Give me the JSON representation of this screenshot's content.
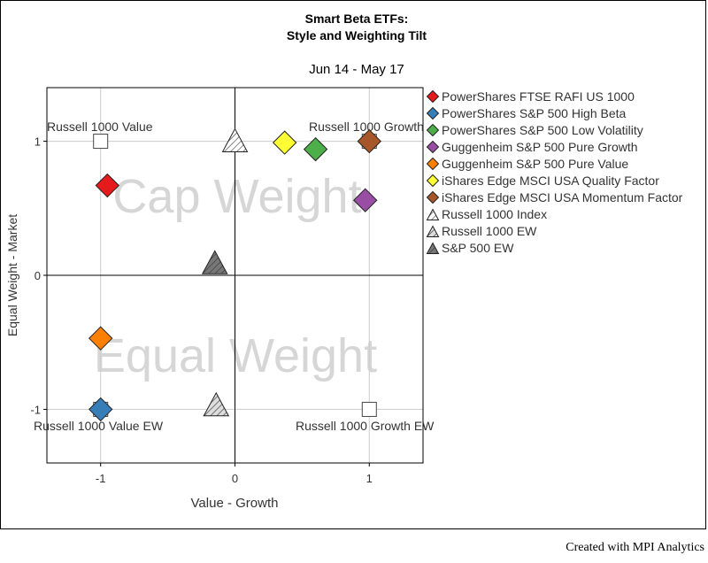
{
  "chart_data": {
    "type": "scatter",
    "title": "Smart Beta ETFs:",
    "subtitle": "Style and Weighting Tilt",
    "period": "Jun 14 - May 17",
    "xlabel": "Value - Growth",
    "ylabel": "Equal Weight  -  Market",
    "xlim": [
      -1.4,
      1.4
    ],
    "ylim": [
      -1.4,
      1.4
    ],
    "xticks": [
      "-1",
      "0",
      "1"
    ],
    "yticks": [
      "1",
      "0",
      "-1"
    ],
    "grid": true,
    "legend_position": "right",
    "region_labels": {
      "top": "Cap Weight",
      "bottom": "Equal Weight"
    },
    "corner_labels": {
      "top_left": "Russell 1000 Value",
      "top_right": "Russell 1000 Growth",
      "bottom_left": "Russell 1000 Value EW",
      "bottom_right": "Russell 1000 Growth EW"
    },
    "series": [
      {
        "name": "PowerShares FTSE RAFI US 1000",
        "marker": "diamond",
        "color": "#e41a1c",
        "x": -0.95,
        "y": 0.67
      },
      {
        "name": "PowerShares S&P 500 High Beta",
        "marker": "diamond",
        "color": "#377eb8",
        "x": -1.0,
        "y": -1.0
      },
      {
        "name": "PowerShares S&P 500 Low Volatility",
        "marker": "diamond",
        "color": "#4daf4a",
        "x": 0.6,
        "y": 0.94
      },
      {
        "name": "Guggenheim S&P 500 Pure Growth",
        "marker": "diamond",
        "color": "#984ea3",
        "x": 0.97,
        "y": 0.56
      },
      {
        "name": "Guggenheim S&P 500 Pure Value",
        "marker": "diamond",
        "color": "#ff7f00",
        "x": -1.0,
        "y": -0.47
      },
      {
        "name": "iShares Edge MSCI USA Quality Factor",
        "marker": "diamond",
        "color": "#ffff33",
        "x": 0.37,
        "y": 0.99
      },
      {
        "name": "iShares Edge MSCI USA Momentum Factor",
        "marker": "diamond",
        "color": "#a65628",
        "x": 1.0,
        "y": 1.0
      },
      {
        "name": "Russell 1000 Index",
        "marker": "triangle-hatched",
        "color": "#ffffff",
        "x": 0.0,
        "y": 1.0
      },
      {
        "name": "Russell 1000 EW",
        "marker": "triangle-hatched",
        "color": "#dddddd",
        "x": -0.14,
        "y": -0.97
      },
      {
        "name": "S&P 500 EW",
        "marker": "triangle-hatched",
        "color": "#777777",
        "x": -0.15,
        "y": 0.09
      }
    ],
    "benchmark_squares": [
      {
        "x": -1,
        "y": 1
      },
      {
        "x": 1,
        "y": 1
      },
      {
        "x": -1,
        "y": -1
      },
      {
        "x": 1,
        "y": -1
      }
    ]
  },
  "footer": "Created with MPI Analytics"
}
